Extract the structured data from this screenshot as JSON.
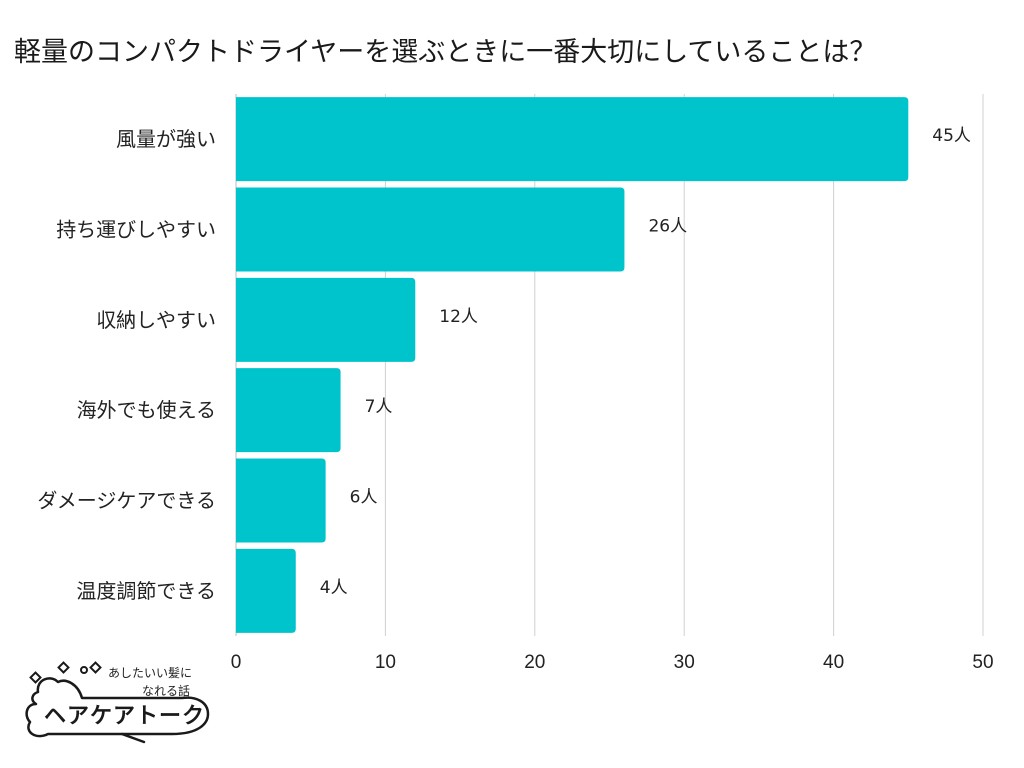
{
  "chart_data": {
    "type": "bar",
    "orientation": "horizontal",
    "title": "軽量のコンパクトドライヤーを選ぶときに一番大切にしていることは？",
    "categories": [
      "風量が強い",
      "持ち運びしやすい",
      "収納しやすい",
      "海外でも使える",
      "ダメージケアできる",
      "温度調節できる"
    ],
    "values": [
      45,
      26,
      12,
      7,
      6,
      4
    ],
    "data_labels": [
      "45人",
      "26人",
      "12人",
      "7人",
      "6人",
      "4人"
    ],
    "xlim": [
      0,
      50
    ],
    "xticks": [
      "0",
      "10",
      "20",
      "30",
      "40",
      "50"
    ],
    "grid": "vertical",
    "bar_color": "#00c4cc"
  },
  "logo": {
    "tagline_line1": "あしたいい髪に",
    "tagline_line2": "なれる話",
    "brand": "ヘアケアトーク"
  }
}
